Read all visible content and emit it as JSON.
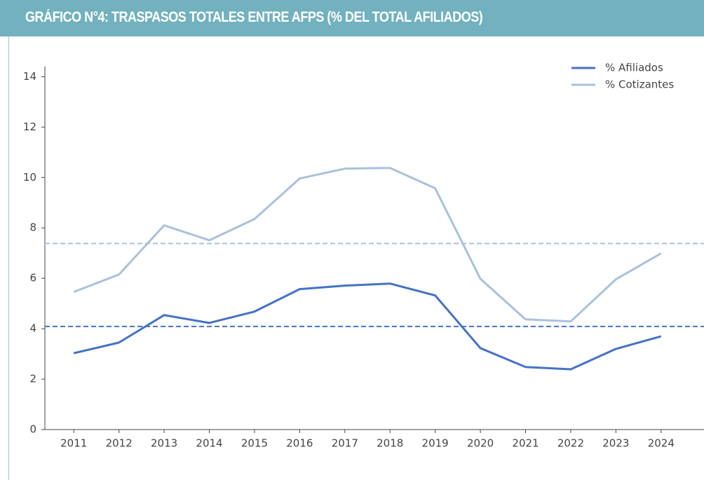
{
  "chart_data": {
    "type": "line",
    "title": "GRÁFICO N°4: TRASPASOS TOTALES ENTRE AFPS (% DEL TOTAL AFILIADOS)",
    "x": [
      2011,
      2012,
      2013,
      2014,
      2015,
      2016,
      2017,
      2018,
      2019,
      2020,
      2021,
      2022,
      2023,
      2024
    ],
    "series": [
      {
        "name": "% Afiliados",
        "color": "#4472c4",
        "values": [
          3.03,
          3.45,
          4.54,
          4.23,
          4.68,
          5.57,
          5.71,
          5.79,
          5.32,
          3.23,
          2.48,
          2.39,
          3.2,
          3.7
        ]
      },
      {
        "name": "% Cotizantes",
        "color": "#aac1dc",
        "values": [
          5.46,
          6.15,
          8.1,
          7.51,
          8.35,
          9.96,
          10.35,
          10.38,
          9.57,
          5.98,
          4.37,
          4.29,
          5.96,
          6.99
        ]
      }
    ],
    "reference_lines": [
      {
        "value": 4.09,
        "color": "#4472c4"
      },
      {
        "value": 7.38,
        "color": "#aac1dc"
      }
    ],
    "xlim": [
      2010.36,
      2024.95
    ],
    "xticks": [
      2011,
      2012,
      2013,
      2014,
      2015,
      2016,
      2017,
      2018,
      2019,
      2020,
      2021,
      2022,
      2023,
      2024
    ],
    "ylim": [
      0,
      14.4
    ],
    "yticks": [
      0,
      2,
      4,
      6,
      8,
      10,
      12,
      14
    ],
    "legend": "upper right"
  }
}
